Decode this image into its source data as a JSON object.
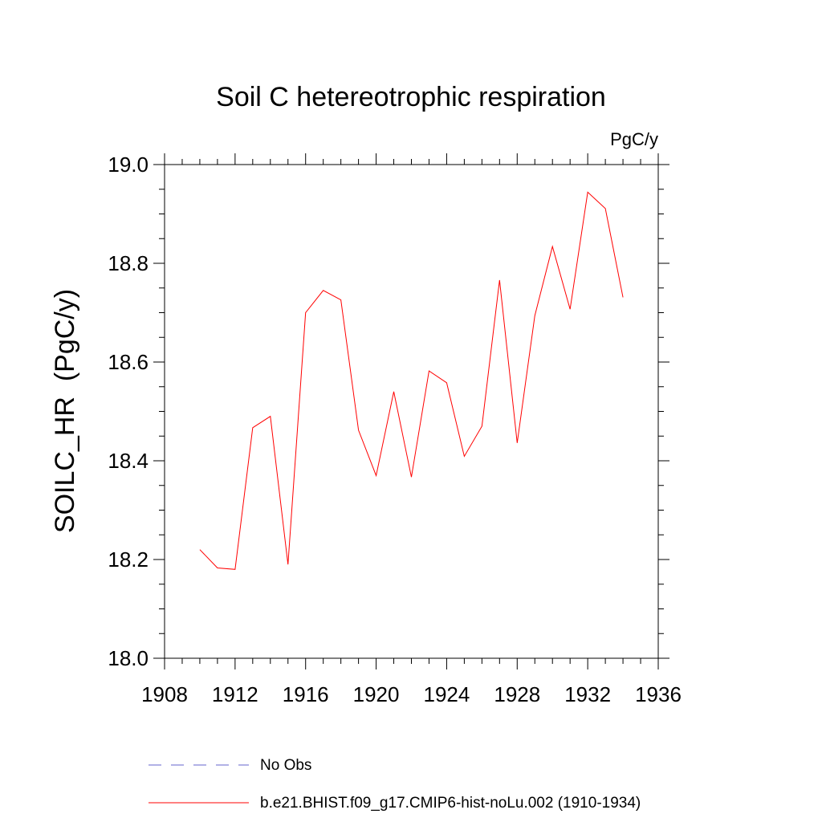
{
  "chart_data": {
    "type": "line",
    "title": "Soil C hetereotrophic respiration",
    "units_label": "PgC/y",
    "ylabel": "SOILC_HR  (PgC/y)",
    "xlabel": "",
    "xlim": [
      1908,
      1936
    ],
    "ylim": [
      18.0,
      19.0
    ],
    "x_ticks": [
      "1908",
      "1912",
      "1916",
      "1920",
      "1924",
      "1928",
      "1932",
      "1936"
    ],
    "y_ticks": [
      "18.0",
      "18.2",
      "18.4",
      "18.6",
      "18.8",
      "19.0"
    ],
    "grid": false,
    "legend_placement": "bottom",
    "series": [
      {
        "name": "b.e21.BHIST.f09_g17.CMIP6-hist-noLu.002 (1910-1934)",
        "color": "#ff0000",
        "style": "solid",
        "x": [
          1910,
          1911,
          1912,
          1913,
          1914,
          1915,
          1916,
          1917,
          1918,
          1919,
          1920,
          1921,
          1922,
          1923,
          1924,
          1925,
          1926,
          1927,
          1928,
          1929,
          1930,
          1931,
          1932,
          1933,
          1934
        ],
        "y": [
          18.22,
          18.183,
          18.18,
          18.467,
          18.49,
          18.19,
          18.7,
          18.745,
          18.726,
          18.462,
          18.37,
          18.54,
          18.367,
          18.582,
          18.558,
          18.409,
          18.47,
          18.766,
          18.436,
          18.694,
          18.834,
          18.707,
          18.944,
          18.911,
          18.731
        ]
      }
    ],
    "legend": [
      {
        "label": "No Obs",
        "color": "#6666cc",
        "style": "dashed"
      },
      {
        "label": "b.e21.BHIST.f09_g17.CMIP6-hist-noLu.002 (1910-1934)",
        "color": "#ff0000",
        "style": "solid"
      }
    ]
  }
}
